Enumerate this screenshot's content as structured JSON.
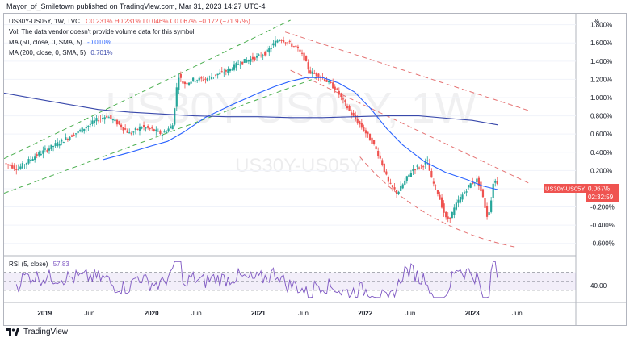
{
  "caption": "Mayor_of_Smiletown published on TradingView.com, Mar 31, 2023 14:27 UTC-4",
  "header": {
    "symbol_line": "US30Y-US05Y, 1W, TVC",
    "ohlc": "O0.231% H0.231% L0.046% C0.067% −0.172 (−71.97%)",
    "vol_note": "Vol: The data vendor doesn't provide volume data for this symbol.",
    "ma50_label": "MA (50, close, 0, SMA, 5)",
    "ma50_value": "-0.010%",
    "ma200_label": "MA (200, close, 0, SMA, 5)",
    "ma200_value": "0.701%"
  },
  "watermark": {
    "big": "US30Y-US05Y, 1W",
    "small": "US30Y-US05Y"
  },
  "price_tag": {
    "symbol": "US30Y-US05Y",
    "value": "0.067%",
    "countdown": "02:32:59"
  },
  "rsi_label": "RSI (5, close)",
  "rsi_value": "57.83",
  "rsi_axis_label": "40.00",
  "brand": "TradingView",
  "colors": {
    "up": "#26a69a",
    "down": "#ef5350",
    "ma50": "#2962ff",
    "ma200": "#3949ab",
    "rsi": "#7e57c2",
    "green_channel": "#4caf50",
    "red_channel": "#e57373",
    "tag": "#ef5350"
  },
  "chart_data": {
    "type": "candlestick",
    "y_unit": "%",
    "ylim": [
      -0.7,
      1.85
    ],
    "y_ticks": [
      "1.800%",
      "1.600%",
      "1.400%",
      "1.200%",
      "1.000%",
      "0.800%",
      "0.600%",
      "0.400%",
      "0.200%",
      "0.000%",
      "-0.200%",
      "-0.400%",
      "-0.600%"
    ],
    "y_tick_values": [
      1.8,
      1.6,
      1.4,
      1.2,
      1.0,
      0.8,
      0.6,
      0.4,
      0.2,
      0.0,
      -0.2,
      -0.4,
      -0.6
    ],
    "x_ticks": [
      {
        "label": "2019",
        "t": 2019.0
      },
      {
        "label": "Jun",
        "t": 2019.42
      },
      {
        "label": "2020",
        "t": 2020.0
      },
      {
        "label": "Jun",
        "t": 2020.42
      },
      {
        "label": "2021",
        "t": 2021.0
      },
      {
        "label": "Jun",
        "t": 2021.42
      },
      {
        "label": "2022",
        "t": 2022.0
      },
      {
        "label": "Jun",
        "t": 2022.42
      },
      {
        "label": "2023",
        "t": 2023.0
      },
      {
        "label": "Jun",
        "t": 2023.42
      }
    ],
    "x_range": [
      2018.62,
      2023.97
    ],
    "price_path": [
      [
        2018.62,
        0.28
      ],
      [
        2018.75,
        0.22
      ],
      [
        2018.9,
        0.35
      ],
      [
        2019.05,
        0.45
      ],
      [
        2019.2,
        0.55
      ],
      [
        2019.35,
        0.65
      ],
      [
        2019.48,
        0.75
      ],
      [
        2019.58,
        0.8
      ],
      [
        2019.68,
        0.72
      ],
      [
        2019.8,
        0.6
      ],
      [
        2019.9,
        0.68
      ],
      [
        2020.0,
        0.65
      ],
      [
        2020.1,
        0.6
      ],
      [
        2020.2,
        0.7
      ],
      [
        2020.22,
        0.95
      ],
      [
        2020.25,
        1.25
      ],
      [
        2020.3,
        1.15
      ],
      [
        2020.4,
        1.2
      ],
      [
        2020.5,
        1.2
      ],
      [
        2020.6,
        1.25
      ],
      [
        2020.72,
        1.3
      ],
      [
        2020.82,
        1.38
      ],
      [
        2020.92,
        1.42
      ],
      [
        2021.0,
        1.45
      ],
      [
        2021.08,
        1.5
      ],
      [
        2021.15,
        1.6
      ],
      [
        2021.2,
        1.65
      ],
      [
        2021.28,
        1.6
      ],
      [
        2021.35,
        1.55
      ],
      [
        2021.42,
        1.45
      ],
      [
        2021.48,
        1.28
      ],
      [
        2021.55,
        1.25
      ],
      [
        2021.62,
        1.2
      ],
      [
        2021.72,
        1.1
      ],
      [
        2021.8,
        0.95
      ],
      [
        2021.88,
        0.8
      ],
      [
        2021.95,
        0.7
      ],
      [
        2022.0,
        0.62
      ],
      [
        2022.08,
        0.48
      ],
      [
        2022.15,
        0.3
      ],
      [
        2022.22,
        0.05
      ],
      [
        2022.3,
        -0.05
      ],
      [
        2022.38,
        0.1
      ],
      [
        2022.45,
        0.22
      ],
      [
        2022.52,
        0.25
      ],
      [
        2022.58,
        0.3
      ],
      [
        2022.62,
        0.1
      ],
      [
        2022.68,
        -0.05
      ],
      [
        2022.72,
        -0.2
      ],
      [
        2022.76,
        -0.35
      ],
      [
        2022.8,
        -0.3
      ],
      [
        2022.86,
        -0.15
      ],
      [
        2022.92,
        -0.05
      ],
      [
        2022.98,
        0.05
      ],
      [
        2023.05,
        0.1
      ],
      [
        2023.1,
        -0.1
      ],
      [
        2023.14,
        -0.3
      ],
      [
        2023.17,
        -0.2
      ],
      [
        2023.2,
        0.1
      ],
      [
        2023.24,
        0.067
      ]
    ],
    "series": [
      {
        "name": "MA (50, close, 0, SMA, 5)",
        "points": [
          [
            2019.55,
            0.32
          ],
          [
            2019.8,
            0.4
          ],
          [
            2020.0,
            0.47
          ],
          [
            2020.15,
            0.52
          ],
          [
            2020.3,
            0.62
          ],
          [
            2020.5,
            0.78
          ],
          [
            2020.75,
            0.92
          ],
          [
            2021.0,
            1.05
          ],
          [
            2021.15,
            1.12
          ],
          [
            2021.3,
            1.18
          ],
          [
            2021.45,
            1.22
          ],
          [
            2021.6,
            1.22
          ],
          [
            2021.75,
            1.16
          ],
          [
            2021.9,
            1.06
          ],
          [
            2022.05,
            0.88
          ],
          [
            2022.2,
            0.66
          ],
          [
            2022.35,
            0.48
          ],
          [
            2022.55,
            0.3
          ],
          [
            2022.75,
            0.18
          ],
          [
            2022.95,
            0.1
          ],
          [
            2023.1,
            0.03
          ],
          [
            2023.24,
            -0.01
          ]
        ]
      },
      {
        "name": "MA (200, close, 0, SMA, 5)",
        "points": [
          [
            2018.62,
            1.05
          ],
          [
            2018.9,
            0.99
          ],
          [
            2019.2,
            0.93
          ],
          [
            2019.5,
            0.87
          ],
          [
            2019.8,
            0.84
          ],
          [
            2020.1,
            0.82
          ],
          [
            2020.4,
            0.8
          ],
          [
            2020.7,
            0.79
          ],
          [
            2021.0,
            0.79
          ],
          [
            2021.3,
            0.78
          ],
          [
            2021.6,
            0.78
          ],
          [
            2021.9,
            0.79
          ],
          [
            2022.2,
            0.8
          ],
          [
            2022.5,
            0.8
          ],
          [
            2022.8,
            0.77
          ],
          [
            2023.0,
            0.75
          ],
          [
            2023.24,
            0.701
          ]
        ]
      }
    ],
    "rsi": {
      "name": "RSI (5, close)",
      "last": 57.83,
      "ylim": [
        10,
        100
      ],
      "upper_band": 70,
      "lower_band": 30,
      "mid": 50
    }
  }
}
